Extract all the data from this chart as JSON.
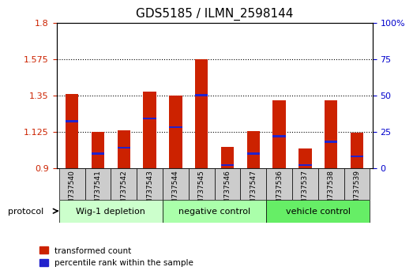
{
  "title": "GDS5185 / ILMN_2598144",
  "samples": [
    "GSM737540",
    "GSM737541",
    "GSM737542",
    "GSM737543",
    "GSM737544",
    "GSM737545",
    "GSM737546",
    "GSM737547",
    "GSM737536",
    "GSM737537",
    "GSM737538",
    "GSM737539"
  ],
  "transformed_count": [
    1.36,
    1.125,
    1.135,
    1.375,
    1.35,
    1.575,
    1.03,
    1.13,
    1.32,
    1.02,
    1.32,
    1.12
  ],
  "percentile_rank": [
    32,
    10,
    14,
    34,
    28,
    50,
    2,
    10,
    22,
    2,
    18,
    8
  ],
  "groups": [
    {
      "label": "Wig-1 depletion",
      "start": 0,
      "end": 3,
      "color": "#ccffcc"
    },
    {
      "label": "negative control",
      "start": 4,
      "end": 7,
      "color": "#aaffaa"
    },
    {
      "label": "vehicle control",
      "start": 8,
      "end": 11,
      "color": "#66ee66"
    }
  ],
  "ymin": 0.9,
  "ymax": 1.8,
  "yticks": [
    0.9,
    1.125,
    1.35,
    1.575,
    1.8
  ],
  "ytick_labels": [
    "0.9",
    "1.125",
    "1.35",
    "1.575",
    "1.8"
  ],
  "y2_ticks": [
    0,
    25,
    50,
    75,
    100
  ],
  "y2_tick_labels": [
    "0",
    "25",
    "50",
    "75",
    "100%"
  ],
  "bar_color": "#cc2200",
  "blue_color": "#2222cc",
  "bar_width": 0.5,
  "background_color": "#ffffff",
  "plot_bg_color": "#ffffff",
  "protocol_label": "protocol",
  "legend_red": "transformed count",
  "legend_blue": "percentile rank within the sample",
  "sample_bg_color": "#cccccc"
}
